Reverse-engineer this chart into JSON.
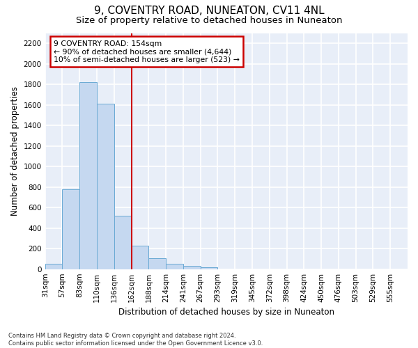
{
  "title": "9, COVENTRY ROAD, NUNEATON, CV11 4NL",
  "subtitle": "Size of property relative to detached houses in Nuneaton",
  "xlabel": "Distribution of detached houses by size in Nuneaton",
  "ylabel": "Number of detached properties",
  "bin_labels": [
    "31sqm",
    "57sqm",
    "83sqm",
    "110sqm",
    "136sqm",
    "162sqm",
    "188sqm",
    "214sqm",
    "241sqm",
    "267sqm",
    "293sqm",
    "319sqm",
    "345sqm",
    "372sqm",
    "398sqm",
    "424sqm",
    "450sqm",
    "476sqm",
    "503sqm",
    "529sqm",
    "555sqm"
  ],
  "bar_values": [
    55,
    775,
    1820,
    1610,
    520,
    230,
    105,
    55,
    30,
    15,
    0,
    0,
    0,
    0,
    0,
    0,
    0,
    0,
    0,
    0,
    0
  ],
  "bar_color": "#c5d8f0",
  "bar_edge_color": "#6aaad4",
  "red_line_x": 5.0,
  "annotation_text": "9 COVENTRY ROAD: 154sqm\n← 90% of detached houses are smaller (4,644)\n10% of semi-detached houses are larger (523) →",
  "annotation_box_color": "#ffffff",
  "annotation_box_edge_color": "#cc0000",
  "ylim": [
    0,
    2300
  ],
  "yticks": [
    0,
    200,
    400,
    600,
    800,
    1000,
    1200,
    1400,
    1600,
    1800,
    2000,
    2200
  ],
  "footnote": "Contains HM Land Registry data © Crown copyright and database right 2024.\nContains public sector information licensed under the Open Government Licence v3.0.",
  "bg_color": "#e8eef8",
  "grid_color": "#ffffff",
  "title_fontsize": 11,
  "subtitle_fontsize": 9.5,
  "label_fontsize": 8.5,
  "tick_fontsize": 7.5,
  "annotation_fontsize": 7.8,
  "footnote_fontsize": 6.0
}
